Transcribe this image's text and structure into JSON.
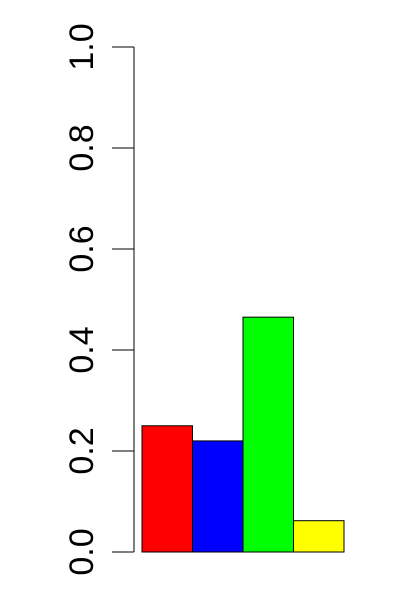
{
  "chart_data": {
    "type": "bar",
    "categories": [
      "",
      "",
      "",
      ""
    ],
    "values": [
      0.25,
      0.22,
      0.465,
      0.062
    ],
    "colors": [
      "#ff0000",
      "#0000ff",
      "#00ff00",
      "#ffff00"
    ],
    "title": "",
    "xlabel": "",
    "ylabel": "",
    "ylim": [
      0,
      1
    ],
    "y_ticks": [
      "0.0",
      "0.2",
      "0.4",
      "0.6",
      "0.8",
      "1.0"
    ],
    "y_tick_values": [
      0,
      0.2,
      0.4,
      0.6,
      0.8,
      1.0
    ],
    "grid": false,
    "legend": "none",
    "bar_border_color": "#000000"
  }
}
